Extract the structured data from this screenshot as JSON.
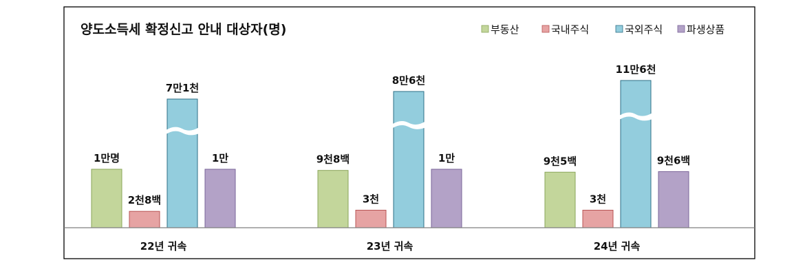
{
  "chart_data": {
    "type": "bar",
    "title": "양도소득세 확정신고 안내 대상자(명)",
    "legend_position": "top-right",
    "grid": false,
    "categories": [
      "22년 귀속",
      "23년 귀속",
      "24년 귀속"
    ],
    "series": [
      {
        "name": "부동산",
        "color": "#c3d69b",
        "stroke": "#8aa55a",
        "values": [
          10000,
          9800,
          9500
        ],
        "labels": [
          "1만명",
          "9천8백",
          "9천5백"
        ]
      },
      {
        "name": "국내주식",
        "color": "#e6a3a3",
        "stroke": "#b85454",
        "values": [
          2800,
          3000,
          3000
        ],
        "labels": [
          "2천8백",
          "3천",
          "3천"
        ]
      },
      {
        "name": "국외주식",
        "color": "#93cddd",
        "stroke": "#2e6f86",
        "values": [
          71000,
          86000,
          116000
        ],
        "labels": [
          "7만1천",
          "8만6천",
          "11만6천"
        ],
        "axis_break": true
      },
      {
        "name": "파생상품",
        "color": "#b3a2c7",
        "stroke": "#7a6499",
        "values": [
          10000,
          10000,
          9600
        ],
        "labels": [
          "1만",
          "1만",
          "9천6백"
        ]
      }
    ]
  }
}
